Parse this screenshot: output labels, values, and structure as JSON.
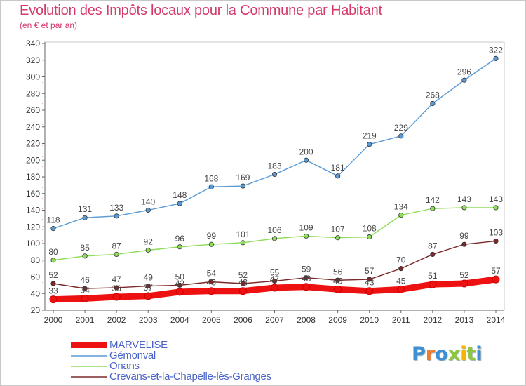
{
  "title": "Evolution des Impôts locaux pour la Commune par Habitant",
  "subtitle": "(en € et par an)",
  "brand": {
    "text": "Proxiti",
    "colors": [
      "#3d8fd6",
      "#f07b2e",
      "#3d8fd6",
      "#8dc63f",
      "#f4b400",
      "#8dc63f",
      "#3d8fd6"
    ]
  },
  "chart_data": {
    "type": "line",
    "x": [
      2000,
      2001,
      2002,
      2003,
      2004,
      2005,
      2006,
      2007,
      2008,
      2009,
      2010,
      2011,
      2012,
      2013,
      2014
    ],
    "ylim": [
      20,
      340
    ],
    "yticks": [
      20,
      40,
      60,
      80,
      100,
      120,
      140,
      160,
      180,
      200,
      220,
      240,
      260,
      280,
      300,
      320,
      340
    ],
    "grid": false,
    "legend_position": "bottom-left",
    "series": [
      {
        "name": "MARVELISE",
        "color": "#ee1111",
        "values": [
          33,
          34,
          36,
          37,
          42,
          43,
          43,
          47,
          48,
          45,
          43,
          45,
          51,
          52,
          57
        ],
        "labels": [
          33,
          34,
          36,
          37,
          42,
          43,
          43,
          47,
          48,
          45,
          43,
          45,
          51,
          52,
          57
        ]
      },
      {
        "name": "Gémonval",
        "color": "#5b9bd5",
        "values": [
          118,
          131,
          133,
          140,
          148,
          168,
          169,
          183,
          200,
          181,
          219,
          229,
          268,
          296,
          322
        ],
        "labels": [
          118,
          131,
          133,
          140,
          148,
          168,
          169,
          183,
          200,
          181,
          219,
          229,
          268,
          296,
          322
        ]
      },
      {
        "name": "Onans",
        "color": "#8fdc5a",
        "values": [
          80,
          85,
          87,
          92,
          96,
          99,
          101,
          106,
          109,
          107,
          108,
          134,
          142,
          143,
          143
        ],
        "labels": [
          80,
          85,
          87,
          92,
          96,
          99,
          101,
          106,
          109,
          107,
          108,
          134,
          142,
          143,
          143
        ]
      },
      {
        "name": "Crevans-et-la-Chapelle-lès-Granges",
        "color": "#7a2a2a",
        "values": [
          52,
          46,
          47,
          49,
          50,
          54,
          52,
          55,
          59,
          56,
          57,
          70,
          87,
          99,
          103
        ],
        "labels": [
          52,
          46,
          47,
          49,
          50,
          54,
          52,
          55,
          59,
          56,
          57,
          70,
          87,
          99,
          103
        ]
      }
    ]
  }
}
